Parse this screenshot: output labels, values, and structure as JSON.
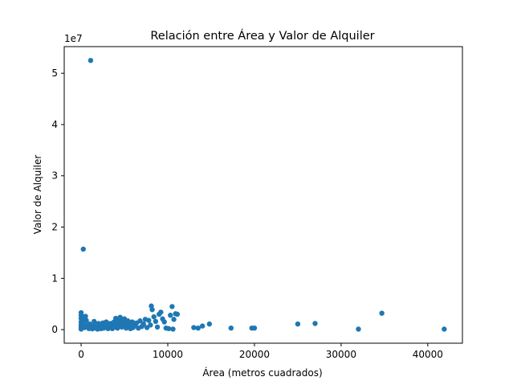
{
  "chart_data": {
    "type": "scatter",
    "title": "Relación entre Área y Valor de Alquiler",
    "xlabel": "Área (metros cuadrados)",
    "ylabel": "Valor de Alquiler",
    "y_offset_label": "1e7",
    "xlim": [
      -1950,
      44000
    ],
    "ylim": [
      -2650000,
      55200000
    ],
    "xticks": [
      0,
      10000,
      20000,
      30000,
      40000
    ],
    "xtick_labels": [
      "0",
      "10000",
      "20000",
      "30000",
      "40000"
    ],
    "yticks": [
      0,
      10000000,
      20000000,
      30000000,
      40000000,
      50000000
    ],
    "ytick_labels": [
      "0",
      "1",
      "2",
      "3",
      "4",
      "5"
    ],
    "grid": false,
    "marker_color": "#1f77b4",
    "points": [
      [
        1100,
        52500000
      ],
      [
        250,
        15700000
      ],
      [
        0,
        3300000
      ],
      [
        0,
        2800000
      ],
      [
        0,
        2200000
      ],
      [
        0,
        1500000
      ],
      [
        0,
        1000000
      ],
      [
        0,
        600000
      ],
      [
        0,
        300000
      ],
      [
        0,
        100000
      ],
      [
        100,
        2000000
      ],
      [
        200,
        1200000
      ],
      [
        300,
        700000
      ],
      [
        400,
        400000
      ],
      [
        500,
        2600000
      ],
      [
        600,
        1800000
      ],
      [
        700,
        900000
      ],
      [
        800,
        500000
      ],
      [
        900,
        200000
      ],
      [
        1000,
        1100000
      ],
      [
        1100,
        300000
      ],
      [
        1200,
        700000
      ],
      [
        1300,
        150000
      ],
      [
        1400,
        500000
      ],
      [
        1500,
        1600000
      ],
      [
        1600,
        900000
      ],
      [
        1700,
        300000
      ],
      [
        1800,
        600000
      ],
      [
        1900,
        100000
      ],
      [
        2000,
        1200000
      ],
      [
        2100,
        400000
      ],
      [
        2200,
        800000
      ],
      [
        2300,
        200000
      ],
      [
        2400,
        600000
      ],
      [
        2500,
        1300000
      ],
      [
        2600,
        300000
      ],
      [
        2700,
        900000
      ],
      [
        2800,
        500000
      ],
      [
        2900,
        1500000
      ],
      [
        3000,
        700000
      ],
      [
        3100,
        200000
      ],
      [
        3200,
        1000000
      ],
      [
        3300,
        400000
      ],
      [
        3400,
        1200000
      ],
      [
        3500,
        600000
      ],
      [
        3600,
        200000
      ],
      [
        3700,
        900000
      ],
      [
        3800,
        1500000
      ],
      [
        3900,
        500000
      ],
      [
        4000,
        2200000
      ],
      [
        4100,
        1100000
      ],
      [
        4200,
        300000
      ],
      [
        4300,
        1800000
      ],
      [
        4400,
        700000
      ],
      [
        4500,
        2400000
      ],
      [
        4600,
        1300000
      ],
      [
        4700,
        500000
      ],
      [
        4800,
        1900000
      ],
      [
        4900,
        800000
      ],
      [
        5000,
        2100000
      ],
      [
        5100,
        1400000
      ],
      [
        5200,
        300000
      ],
      [
        5300,
        1000000
      ],
      [
        5400,
        1700000
      ],
      [
        5500,
        600000
      ],
      [
        5600,
        1200000
      ],
      [
        5700,
        200000
      ],
      [
        5800,
        900000
      ],
      [
        5900,
        1500000
      ],
      [
        6000,
        400000
      ],
      [
        6200,
        800000
      ],
      [
        6400,
        1300000
      ],
      [
        6600,
        300000
      ],
      [
        6800,
        1700000
      ],
      [
        7000,
        600000
      ],
      [
        7200,
        1100000
      ],
      [
        7400,
        2000000
      ],
      [
        7600,
        400000
      ],
      [
        7800,
        1800000
      ],
      [
        8000,
        900000
      ],
      [
        8100,
        4600000
      ],
      [
        8200,
        3900000
      ],
      [
        8400,
        2500000
      ],
      [
        8600,
        1600000
      ],
      [
        8800,
        500000
      ],
      [
        9000,
        3000000
      ],
      [
        9200,
        3400000
      ],
      [
        9400,
        2100000
      ],
      [
        9600,
        1500000
      ],
      [
        9800,
        300000
      ],
      [
        10100,
        200000
      ],
      [
        10300,
        2800000
      ],
      [
        10500,
        4500000
      ],
      [
        10700,
        2000000
      ],
      [
        10900,
        3100000
      ],
      [
        11100,
        3000000
      ],
      [
        10600,
        100000
      ],
      [
        13000,
        400000
      ],
      [
        13500,
        300000
      ],
      [
        14000,
        700000
      ],
      [
        14800,
        1100000
      ],
      [
        17300,
        300000
      ],
      [
        19700,
        300000
      ],
      [
        20000,
        300000
      ],
      [
        25000,
        1100000
      ],
      [
        27000,
        1200000
      ],
      [
        32000,
        100000
      ],
      [
        34700,
        3200000
      ],
      [
        41900,
        100000
      ]
    ]
  }
}
